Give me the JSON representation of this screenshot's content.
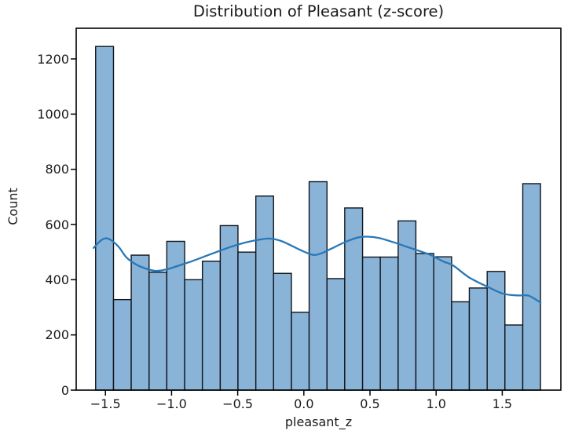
{
  "chart_data": {
    "type": "bar",
    "subtype": "histogram-with-kde-overlay",
    "title": "Distribution of Pleasant (z-score)",
    "xlabel": "pleasant_z",
    "ylabel": "Count",
    "grid": false,
    "legend": null,
    "xlim": [
      -1.721,
      1.943
    ],
    "ylim": [
      0,
      1311
    ],
    "bin_edges": [
      -1.574,
      -1.439,
      -1.305,
      -1.17,
      -1.036,
      -0.901,
      -0.767,
      -0.632,
      -0.498,
      -0.363,
      -0.229,
      -0.094,
      0.04,
      0.175,
      0.309,
      0.444,
      0.578,
      0.713,
      0.847,
      0.982,
      1.117,
      1.251,
      1.386,
      1.52,
      1.655,
      1.789
    ],
    "counts": [
      1245,
      328,
      489,
      427,
      539,
      400,
      467,
      596,
      500,
      703,
      423,
      282,
      755,
      404,
      660,
      482,
      482,
      613,
      495,
      483,
      320,
      370,
      430,
      236,
      748
    ],
    "kde": [
      [
        -1.59,
        515
      ],
      [
        -1.54,
        540
      ],
      [
        -1.5,
        550
      ],
      [
        -1.46,
        544
      ],
      [
        -1.4,
        519
      ],
      [
        -1.34,
        480
      ],
      [
        -1.27,
        456
      ],
      [
        -1.2,
        441
      ],
      [
        -1.12,
        432
      ],
      [
        -1.04,
        437
      ],
      [
        -0.94,
        452
      ],
      [
        -0.84,
        468
      ],
      [
        -0.74,
        486
      ],
      [
        -0.64,
        504
      ],
      [
        -0.54,
        521
      ],
      [
        -0.44,
        535
      ],
      [
        -0.34,
        545
      ],
      [
        -0.26,
        549
      ],
      [
        -0.17,
        540
      ],
      [
        -0.08,
        520
      ],
      [
        0.0,
        502
      ],
      [
        0.07,
        490
      ],
      [
        0.13,
        495
      ],
      [
        0.21,
        513
      ],
      [
        0.31,
        536
      ],
      [
        0.41,
        553
      ],
      [
        0.48,
        556
      ],
      [
        0.57,
        551
      ],
      [
        0.67,
        537
      ],
      [
        0.78,
        519
      ],
      [
        0.88,
        503
      ],
      [
        0.96,
        489
      ],
      [
        1.05,
        467
      ],
      [
        1.13,
        451
      ],
      [
        1.25,
        408
      ],
      [
        1.39,
        374
      ],
      [
        1.51,
        349
      ],
      [
        1.62,
        343
      ],
      [
        1.7,
        342
      ],
      [
        1.79,
        317
      ]
    ],
    "x_ticks": [
      {
        "v": -1.5,
        "label": "−1.5"
      },
      {
        "v": -1.0,
        "label": "−1.0"
      },
      {
        "v": -0.5,
        "label": "−0.5"
      },
      {
        "v": 0.0,
        "label": "0.0"
      },
      {
        "v": 0.5,
        "label": "0.5"
      },
      {
        "v": 1.0,
        "label": "1.0"
      },
      {
        "v": 1.5,
        "label": "1.5"
      }
    ],
    "y_ticks": [
      {
        "v": 0,
        "label": "0"
      },
      {
        "v": 200,
        "label": "200"
      },
      {
        "v": 400,
        "label": "400"
      },
      {
        "v": 600,
        "label": "600"
      },
      {
        "v": 800,
        "label": "800"
      },
      {
        "v": 1000,
        "label": "1000"
      },
      {
        "v": 1200,
        "label": "1200"
      }
    ],
    "colors": {
      "bar_fill": "#89b3d7",
      "bar_edge": "#10151c",
      "kde_line": "#2878b8",
      "spine": "#000000",
      "text": "#1a1a1a",
      "background": "#ffffff"
    }
  }
}
